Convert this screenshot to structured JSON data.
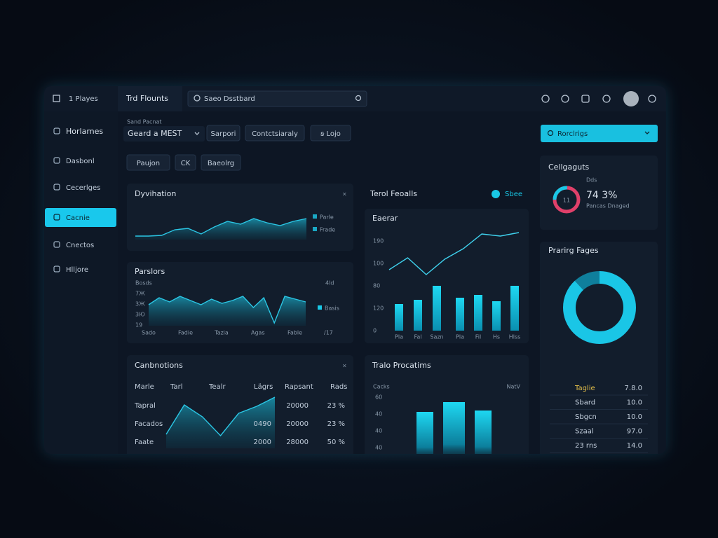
{
  "app_name": "1 Playes",
  "tab": "Trd Flounts",
  "search": "Saeo Dsstbard",
  "sidebar": [
    "Horlarnes",
    "Dasbonl",
    "Cecerlges",
    "Cacnie",
    "Cnectos",
    "Hlljore"
  ],
  "sidebar_active": 3,
  "filters": {
    "label": "Sand Pacnat",
    "select": "Geard a MEST",
    "buttons": [
      "Sarpori",
      "Contctsiaraly",
      "ꞩ Lojo"
    ],
    "buttons2": [
      "Paujon",
      "CK",
      "Baeolrg"
    ]
  },
  "right_select": "Rorclrigs",
  "dyvihation": {
    "title": "Dyvihation",
    "legend": [
      "Parle",
      "Frade"
    ],
    "ylim": [
      0,
      50
    ],
    "values": [
      5,
      5,
      6,
      14,
      16,
      8,
      18,
      26,
      22,
      30,
      24,
      20,
      26,
      30
    ]
  },
  "parslors": {
    "title": "Parslors",
    "ylabels": [
      "Bosds",
      "7Ж",
      "3Ж",
      "3Ю",
      "19"
    ],
    "xlabels": [
      "Sado",
      "Fadie",
      "Tazia",
      "Agas",
      "Fable"
    ],
    "right_top": "4ld",
    "right_bottom": "/17",
    "legend": "Basis",
    "ylim": [
      0,
      50
    ],
    "values": [
      30,
      40,
      34,
      42,
      36,
      30,
      38,
      32,
      36,
      42,
      26,
      40,
      4,
      42,
      38,
      34
    ]
  },
  "terol": {
    "title": "Terol Feoalls",
    "badge": "Sbee"
  },
  "eaerar": {
    "title": "Eaerar",
    "ylabels": [
      "190",
      "100",
      "80",
      "120",
      "0"
    ],
    "xlabels": [
      "Pla",
      "Fal",
      "Sazn",
      "Pla",
      "Fil",
      "Hs",
      "Hlss"
    ],
    "ylim": [
      0,
      140
    ],
    "bars": [
      38,
      44,
      64,
      47,
      51,
      42,
      64
    ],
    "line": [
      87,
      104,
      80,
      102,
      117,
      138,
      135,
      140
    ]
  },
  "canbnotions": {
    "title": "Canbnotions",
    "headers": [
      "Marle",
      "Tarl",
      "Tealr",
      "Lägrs",
      "Rapsant",
      "Rads"
    ],
    "rows": [
      [
        "Tapral",
        "",
        "20000",
        "23 %"
      ],
      [
        "Facados",
        "0490",
        "20000",
        "23 %"
      ],
      [
        "Faate",
        "2000",
        "28000",
        "50 %"
      ]
    ],
    "ylim": [
      0,
      80
    ],
    "values": [
      20,
      62,
      45,
      18,
      50,
      60,
      73
    ]
  },
  "tralo": {
    "title": "Tralo Procatims",
    "left": "Cacks",
    "right": "NatV",
    "ylabels": [
      "60",
      "40",
      "40",
      "40"
    ],
    "ylim": [
      0,
      100
    ],
    "bars": [
      72,
      86,
      74
    ]
  },
  "gauge": {
    "title": "Cellgaguts",
    "center": "11",
    "value": 74.3,
    "value_label": "74 3%",
    "caption_top": "Dds",
    "caption": "Pancas Dnaged"
  },
  "pages": {
    "title": "Prarirg Fages",
    "donut": [
      88,
      12
    ],
    "rows": [
      [
        "Taglie",
        "7.8.0"
      ],
      [
        "Sbard",
        "10.0"
      ],
      [
        "Sbgcn",
        "10.0"
      ],
      [
        "Szaal",
        "97.0"
      ],
      [
        "23 rns",
        "14.0"
      ]
    ]
  }
}
